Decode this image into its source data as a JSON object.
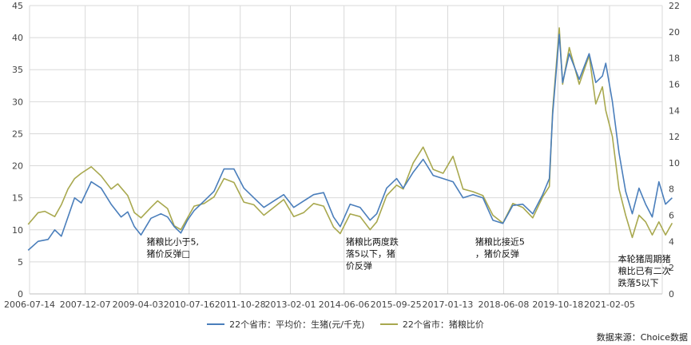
{
  "chart_data": {
    "type": "line",
    "x_ticks": [
      "2006-07-14",
      "2007-12-07",
      "2009-04-03",
      "2010-07-16",
      "2011-10-28",
      "2013-02-01",
      "2014-06-06",
      "2015-09-25",
      "2017-01-13",
      "2018-06-08",
      "2019-10-18",
      "2021-02-05"
    ],
    "y_left_ticks": [
      "0",
      "5",
      "10",
      "15",
      "20",
      "25",
      "30",
      "35",
      "40",
      "45"
    ],
    "y_right_ticks": [
      "0",
      "2",
      "4",
      "6",
      "8",
      "10",
      "12",
      "14",
      "16",
      "18",
      "20",
      "22"
    ],
    "ylim_left": [
      0,
      45
    ],
    "ylim_right": [
      0,
      22
    ],
    "grid": true,
    "legend_position": "bottom",
    "series": [
      {
        "name": "22个省市：平均价：生猪(元/千克)",
        "axis": "left",
        "color": "#4a7ebb",
        "points": [
          [
            "2006-07",
            6.8
          ],
          [
            "2006-10",
            8.2
          ],
          [
            "2007-01",
            8.5
          ],
          [
            "2007-03",
            10.0
          ],
          [
            "2007-05",
            9.0
          ],
          [
            "2007-07",
            12.0
          ],
          [
            "2007-09",
            15.0
          ],
          [
            "2007-11",
            14.2
          ],
          [
            "2008-02",
            17.5
          ],
          [
            "2008-05",
            16.5
          ],
          [
            "2008-08",
            14.0
          ],
          [
            "2008-11",
            12.0
          ],
          [
            "2009-01",
            12.8
          ],
          [
            "2009-03",
            10.5
          ],
          [
            "2009-05",
            9.2
          ],
          [
            "2009-08",
            11.8
          ],
          [
            "2009-11",
            12.5
          ],
          [
            "2010-01",
            12.0
          ],
          [
            "2010-03",
            10.5
          ],
          [
            "2010-05",
            9.5
          ],
          [
            "2010-07",
            11.5
          ],
          [
            "2010-09",
            13.0
          ],
          [
            "2010-12",
            14.5
          ],
          [
            "2011-03",
            16.0
          ],
          [
            "2011-06",
            19.5
          ],
          [
            "2011-09",
            19.5
          ],
          [
            "2011-12",
            16.5
          ],
          [
            "2012-03",
            15.0
          ],
          [
            "2012-06",
            13.5
          ],
          [
            "2012-09",
            14.5
          ],
          [
            "2012-12",
            15.5
          ],
          [
            "2013-03",
            13.5
          ],
          [
            "2013-06",
            14.5
          ],
          [
            "2013-09",
            15.5
          ],
          [
            "2013-12",
            15.8
          ],
          [
            "2014-03",
            12.0
          ],
          [
            "2014-05",
            10.5
          ],
          [
            "2014-08",
            14.0
          ],
          [
            "2014-11",
            13.5
          ],
          [
            "2015-02",
            11.5
          ],
          [
            "2015-04",
            12.5
          ],
          [
            "2015-07",
            16.5
          ],
          [
            "2015-10",
            18.0
          ],
          [
            "2015-12",
            16.5
          ],
          [
            "2016-03",
            19.0
          ],
          [
            "2016-06",
            21.0
          ],
          [
            "2016-09",
            18.5
          ],
          [
            "2016-12",
            18.0
          ],
          [
            "2017-03",
            17.5
          ],
          [
            "2017-06",
            15.0
          ],
          [
            "2017-09",
            15.5
          ],
          [
            "2017-12",
            15.0
          ],
          [
            "2018-03",
            11.5
          ],
          [
            "2018-06",
            11.0
          ],
          [
            "2018-09",
            13.8
          ],
          [
            "2018-12",
            14.0
          ],
          [
            "2019-03",
            12.5
          ],
          [
            "2019-06",
            15.5
          ],
          [
            "2019-08",
            18.0
          ],
          [
            "2019-09",
            28.0
          ],
          [
            "2019-11",
            40.5
          ],
          [
            "2019-12",
            33.0
          ],
          [
            "2020-02",
            37.5
          ],
          [
            "2020-05",
            33.5
          ],
          [
            "2020-08",
            37.5
          ],
          [
            "2020-10",
            33.0
          ],
          [
            "2020-12",
            34.0
          ],
          [
            "2021-01",
            36.0
          ],
          [
            "2021-03",
            30.0
          ],
          [
            "2021-05",
            22.0
          ],
          [
            "2021-07",
            16.0
          ],
          [
            "2021-09",
            12.5
          ],
          [
            "2021-11",
            16.5
          ],
          [
            "2022-01",
            14.0
          ],
          [
            "2022-03",
            12.0
          ],
          [
            "2022-05",
            17.5
          ],
          [
            "2022-07",
            14.0
          ],
          [
            "2022-09",
            15.0
          ]
        ]
      },
      {
        "name": "22个省市：猪粮比价",
        "axis": "right",
        "color": "#a8a84e",
        "points": [
          [
            "2006-07",
            5.3
          ],
          [
            "2006-10",
            6.2
          ],
          [
            "2006-12",
            6.3
          ],
          [
            "2007-03",
            5.9
          ],
          [
            "2007-05",
            6.8
          ],
          [
            "2007-07",
            8.0
          ],
          [
            "2007-09",
            8.8
          ],
          [
            "2007-11",
            9.2
          ],
          [
            "2008-02",
            9.7
          ],
          [
            "2008-05",
            9.0
          ],
          [
            "2008-08",
            8.0
          ],
          [
            "2008-10",
            8.4
          ],
          [
            "2009-01",
            7.5
          ],
          [
            "2009-03",
            6.2
          ],
          [
            "2009-05",
            5.8
          ],
          [
            "2009-08",
            6.6
          ],
          [
            "2009-10",
            7.1
          ],
          [
            "2010-01",
            6.5
          ],
          [
            "2010-03",
            5.2
          ],
          [
            "2010-05",
            4.9
          ],
          [
            "2010-07",
            5.8
          ],
          [
            "2010-09",
            6.7
          ],
          [
            "2010-12",
            6.9
          ],
          [
            "2011-03",
            7.4
          ],
          [
            "2011-06",
            8.8
          ],
          [
            "2011-09",
            8.5
          ],
          [
            "2011-12",
            7.0
          ],
          [
            "2012-03",
            6.8
          ],
          [
            "2012-06",
            6.0
          ],
          [
            "2012-09",
            6.6
          ],
          [
            "2012-12",
            7.2
          ],
          [
            "2013-03",
            5.9
          ],
          [
            "2013-06",
            6.2
          ],
          [
            "2013-09",
            6.9
          ],
          [
            "2013-12",
            6.7
          ],
          [
            "2014-03",
            5.1
          ],
          [
            "2014-05",
            4.6
          ],
          [
            "2014-08",
            6.1
          ],
          [
            "2014-11",
            5.9
          ],
          [
            "2015-02",
            4.9
          ],
          [
            "2015-04",
            5.5
          ],
          [
            "2015-07",
            7.5
          ],
          [
            "2015-10",
            8.3
          ],
          [
            "2015-12",
            8.0
          ],
          [
            "2016-03",
            10.0
          ],
          [
            "2016-06",
            11.2
          ],
          [
            "2016-09",
            9.5
          ],
          [
            "2016-12",
            9.2
          ],
          [
            "2017-03",
            10.5
          ],
          [
            "2017-06",
            8.0
          ],
          [
            "2017-09",
            7.8
          ],
          [
            "2017-12",
            7.5
          ],
          [
            "2018-03",
            6.0
          ],
          [
            "2018-06",
            5.4
          ],
          [
            "2018-09",
            6.9
          ],
          [
            "2018-12",
            6.6
          ],
          [
            "2019-03",
            5.8
          ],
          [
            "2019-06",
            7.4
          ],
          [
            "2019-08",
            8.2
          ],
          [
            "2019-09",
            14.0
          ],
          [
            "2019-11",
            20.3
          ],
          [
            "2019-12",
            16.0
          ],
          [
            "2020-02",
            18.8
          ],
          [
            "2020-05",
            16.0
          ],
          [
            "2020-08",
            18.2
          ],
          [
            "2020-10",
            14.5
          ],
          [
            "2020-12",
            15.8
          ],
          [
            "2021-01",
            14.0
          ],
          [
            "2021-03",
            12.0
          ],
          [
            "2021-05",
            8.0
          ],
          [
            "2021-07",
            6.0
          ],
          [
            "2021-09",
            4.3
          ],
          [
            "2021-11",
            6.0
          ],
          [
            "2022-01",
            5.5
          ],
          [
            "2022-03",
            4.5
          ],
          [
            "2022-05",
            5.5
          ],
          [
            "2022-07",
            4.5
          ],
          [
            "2022-09",
            5.4
          ]
        ]
      }
    ],
    "annotations": [
      {
        "lines": [
          "猪粮比小于5,",
          "猪价反弹□"
        ],
        "date": "2009-05",
        "value": 4.6
      },
      {
        "lines": [
          "猪粮比两度跌",
          "落5以下，猪",
          "价反弹"
        ],
        "date": "2014-05",
        "value": 4.6
      },
      {
        "lines": [
          "猪粮比接近5",
          "，猪价反弹"
        ],
        "date": "2017-08",
        "value": 4.6
      },
      {
        "lines": [
          "本轮猪周期猪",
          "粮比已有二次",
          "跌落5以下"
        ],
        "date": "2021-03",
        "value": 3.3
      }
    ]
  },
  "legend": {
    "item1": "22个省市：平均价：生猪(元/千克)",
    "item2": "22个省市：猪粮比价"
  },
  "source_text": "数据来源：Choice数据"
}
